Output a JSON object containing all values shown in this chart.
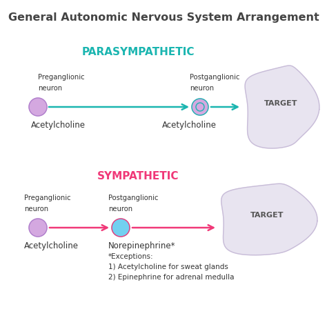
{
  "title": "General Autonomic Nervous System Arrangement",
  "title_fontsize": 11.5,
  "title_color": "#444444",
  "bg_color": "#ffffff",
  "parasympathetic_label": "PARASYMPATHETIC",
  "parasympathetic_color": "#1ab5b0",
  "sympathetic_label": "SYMPATHETIC",
  "sympathetic_color": "#f03878",
  "para_pre_label_line1": "Preganglionic",
  "para_pre_label_line2": "neuron",
  "para_post_label_line1": "Postganglionic",
  "para_post_label_line2": "neuron",
  "para_target_label": "TARGET",
  "para_ach1": "Acetylcholine",
  "para_ach2": "Acetylcholine",
  "symp_pre_label_line1": "Preganglionic",
  "symp_pre_label_line2": "neuron",
  "symp_post_label_line1": "Postganglionic",
  "symp_post_label_line2": "neuron",
  "symp_target_label": "TARGET",
  "symp_ach": "Acetylcholine",
  "symp_norepi": "Norepinephrine*",
  "symp_exceptions_line1": "*Exceptions:",
  "symp_exceptions_line2": "1) Acetylcholine for sweat glands",
  "symp_exceptions_line3": "2) Epinephrine for adrenal medulla",
  "para_pre_circle_color": "#d4a8e0",
  "para_post_circle_color": "#d4a8e0",
  "symp_pre_circle_color": "#d4a8e0",
  "symp_post_circle_color": "#72d0f0",
  "label_fontsize": 7.5,
  "small_fontsize": 6.5,
  "neuron_label_color": "#333333",
  "target_blob_color_para": "#e8e4f0",
  "target_blob_color_symp": "#e8e4f0",
  "target_border_color": "#c8bcd8",
  "section_fontsize": 11
}
